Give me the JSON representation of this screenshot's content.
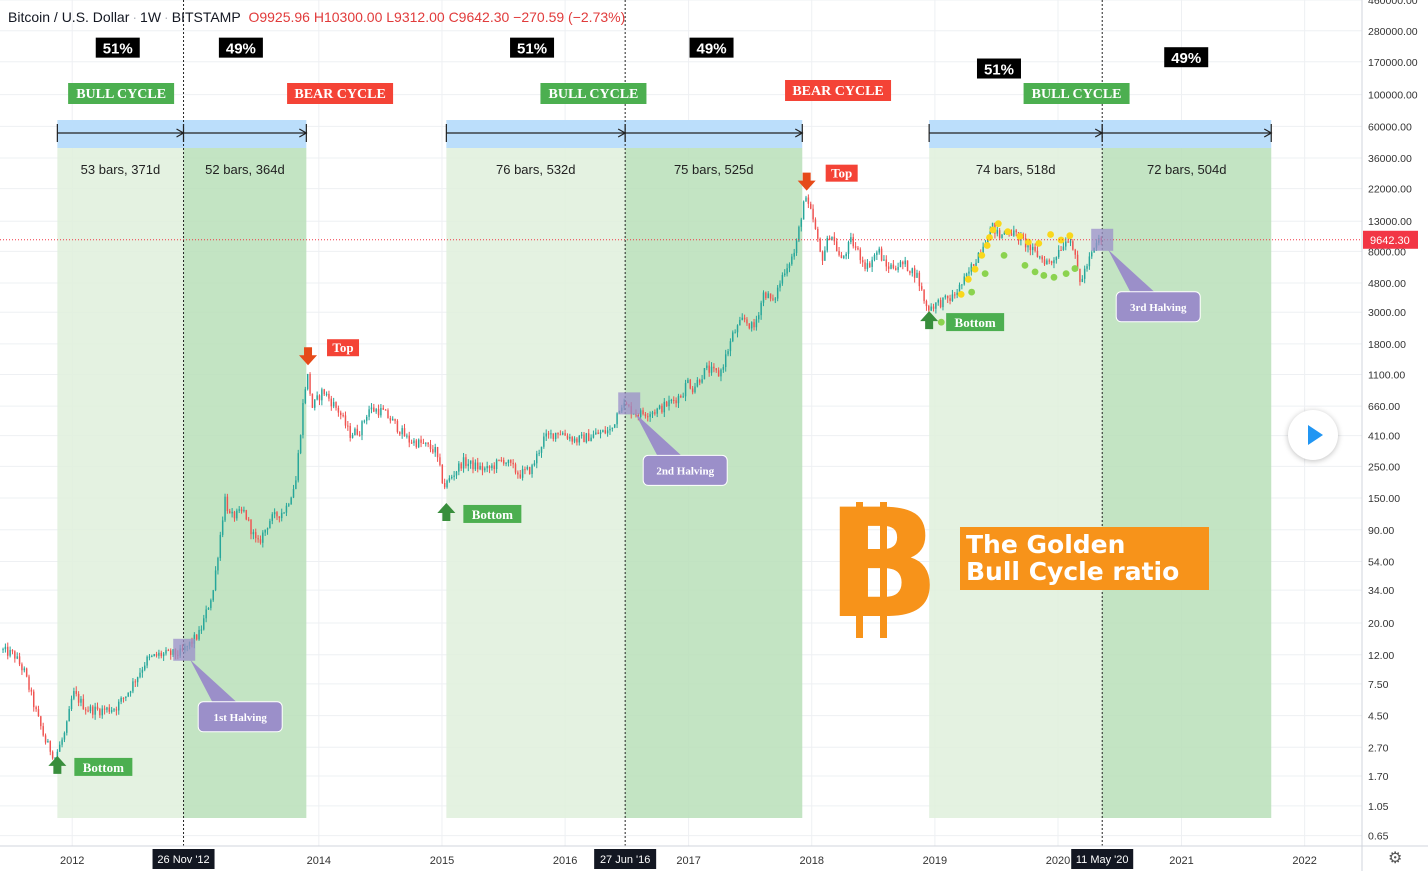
{
  "header": {
    "symbol": "Bitcoin / U.S. Dollar",
    "interval": "1W",
    "exchange": "BITSTAMP",
    "open": "O9925.96",
    "high": "H10300.00",
    "low": "L9312.00",
    "close": "C9642.30",
    "change": "−270.59 (−2.73%)"
  },
  "chart_data": {
    "type": "candlestick",
    "title": "Bitcoin / U.S. Dollar · 1W · BITSTAMP",
    "y_scale": "log",
    "ylim": [
      0.55,
      460000
    ],
    "xlim": [
      "2011-06-01",
      "2022-06-20"
    ],
    "x_ticks": [
      "2012",
      "2014",
      "2015",
      "2016",
      "2017",
      "2018",
      "2019",
      "2020",
      "2021",
      "2022"
    ],
    "y_ticks": [
      "0.65",
      "1.05",
      "1.70",
      "2.70",
      "4.50",
      "7.50",
      "12.00",
      "20.00",
      "34.00",
      "54.00",
      "90.00",
      "150.00",
      "250.00",
      "410.00",
      "660.00",
      "1100.00",
      "1800.00",
      "3000.00",
      "4800.00",
      "8000.00",
      "13000.00",
      "22000.00",
      "36000.00",
      "60000.00",
      "100000.00",
      "170000.00",
      "280000.00",
      "460000.00"
    ],
    "last_price": {
      "value": 9642.3,
      "label": "9642.30",
      "color": "#f23645"
    },
    "date_markers": [
      {
        "date": "2012-11-26",
        "label": "26 Nov '12"
      },
      {
        "date": "2016-06-27",
        "label": "27 Jun '16"
      },
      {
        "date": "2020-05-11",
        "label": "11 May '20"
      }
    ],
    "price_path": [
      [
        "2011-06-10",
        13
      ],
      [
        "2011-07-20",
        12
      ],
      [
        "2011-08-20",
        9
      ],
      [
        "2011-09-20",
        5
      ],
      [
        "2011-10-20",
        3
      ],
      [
        "2011-11-18",
        2.3
      ],
      [
        "2011-12-20",
        3.5
      ],
      [
        "2012-01-10",
        6.5
      ],
      [
        "2012-02-20",
        5
      ],
      [
        "2012-04-01",
        4.9
      ],
      [
        "2012-05-15",
        5.1
      ],
      [
        "2012-06-20",
        6.5
      ],
      [
        "2012-08-15",
        11
      ],
      [
        "2012-09-20",
        12
      ],
      [
        "2012-11-26",
        12.3
      ],
      [
        "2013-01-20",
        17
      ],
      [
        "2013-03-01",
        34
      ],
      [
        "2013-04-05",
        150
      ],
      [
        "2013-04-20",
        110
      ],
      [
        "2013-06-01",
        120
      ],
      [
        "2013-07-10",
        70
      ],
      [
        "2013-08-15",
        105
      ],
      [
        "2013-10-01",
        125
      ],
      [
        "2013-11-01",
        200
      ],
      [
        "2013-11-25",
        800
      ],
      [
        "2013-12-05",
        1100
      ],
      [
        "2013-12-20",
        650
      ],
      [
        "2014-01-20",
        850
      ],
      [
        "2014-03-10",
        600
      ],
      [
        "2014-04-10",
        420
      ],
      [
        "2014-05-10",
        450
      ],
      [
        "2014-06-05",
        630
      ],
      [
        "2014-07-15",
        610
      ],
      [
        "2014-08-20",
        500
      ],
      [
        "2014-10-01",
        380
      ],
      [
        "2014-11-10",
        360
      ],
      [
        "2014-12-20",
        320
      ],
      [
        "2015-01-14",
        180
      ],
      [
        "2015-03-10",
        270
      ],
      [
        "2015-05-20",
        235
      ],
      [
        "2015-07-10",
        280
      ],
      [
        "2015-08-25",
        220
      ],
      [
        "2015-10-01",
        240
      ],
      [
        "2015-11-05",
        390
      ],
      [
        "2015-12-20",
        440
      ],
      [
        "2016-02-10",
        380
      ],
      [
        "2016-04-10",
        420
      ],
      [
        "2016-05-25",
        450
      ],
      [
        "2016-06-20",
        700
      ],
      [
        "2016-08-10",
        580
      ],
      [
        "2016-10-10",
        620
      ],
      [
        "2016-12-20",
        800
      ],
      [
        "2017-01-05",
        1000
      ],
      [
        "2017-01-20",
        880
      ],
      [
        "2017-03-01",
        1200
      ],
      [
        "2017-04-10",
        1100
      ],
      [
        "2017-05-20",
        2100
      ],
      [
        "2017-06-20",
        2700
      ],
      [
        "2017-07-20",
        2300
      ],
      [
        "2017-08-20",
        4200
      ],
      [
        "2017-09-15",
        3500
      ],
      [
        "2017-10-20",
        6000
      ],
      [
        "2017-11-20",
        8000
      ],
      [
        "2017-12-17",
        19000
      ],
      [
        "2018-01-10",
        14000
      ],
      [
        "2018-02-06",
        7000
      ],
      [
        "2018-03-05",
        11000
      ],
      [
        "2018-04-05",
        6800
      ],
      [
        "2018-05-05",
        9500
      ],
      [
        "2018-06-20",
        6200
      ],
      [
        "2018-07-25",
        8200
      ],
      [
        "2018-08-15",
        6200
      ],
      [
        "2018-10-10",
        6500
      ],
      [
        "2018-11-15",
        5500
      ],
      [
        "2018-12-15",
        3200
      ],
      [
        "2019-01-20",
        3500
      ],
      [
        "2019-03-01",
        3800
      ],
      [
        "2019-04-10",
        5200
      ],
      [
        "2019-05-20",
        8000
      ],
      [
        "2019-06-26",
        12000
      ],
      [
        "2019-07-20",
        10000
      ],
      [
        "2019-08-10",
        11500
      ],
      [
        "2019-09-20",
        9800
      ],
      [
        "2019-10-25",
        8000
      ],
      [
        "2019-11-25",
        7000
      ],
      [
        "2019-12-18",
        6600
      ],
      [
        "2020-01-15",
        8600
      ],
      [
        "2020-02-13",
        10300
      ],
      [
        "2020-03-13",
        4900
      ],
      [
        "2020-04-10",
        7000
      ],
      [
        "2020-05-08",
        9642
      ]
    ],
    "cycle_zones": [
      {
        "start": "2011-11-18",
        "end": "2012-11-26",
        "shade": "light"
      },
      {
        "start": "2012-11-26",
        "end": "2013-11-25",
        "shade": "dark"
      },
      {
        "start": "2015-01-14",
        "end": "2016-06-27",
        "shade": "light"
      },
      {
        "start": "2016-06-27",
        "end": "2017-12-04",
        "shade": "dark"
      },
      {
        "start": "2018-12-15",
        "end": "2020-05-11",
        "shade": "light"
      },
      {
        "start": "2020-05-11",
        "end": "2021-09-24",
        "shade": "dark"
      }
    ],
    "ranges": [
      {
        "start": "2011-11-18",
        "end": "2012-11-26",
        "label": "53 bars, 371d"
      },
      {
        "start": "2012-11-26",
        "end": "2013-11-25",
        "label": "52 bars, 364d"
      },
      {
        "start": "2015-01-14",
        "end": "2016-06-27",
        "label": "76 bars, 532d"
      },
      {
        "start": "2016-06-27",
        "end": "2017-12-04",
        "label": "75 bars, 525d"
      },
      {
        "start": "2018-12-15",
        "end": "2020-05-11",
        "label": "74 bars, 518d"
      },
      {
        "start": "2020-05-11",
        "end": "2021-09-24",
        "label": "72 bars, 504d"
      }
    ],
    "percent_labels": [
      {
        "date": "2012-05-15",
        "price": 210000,
        "text": "51%"
      },
      {
        "date": "2013-05-15",
        "price": 210000,
        "text": "49%"
      },
      {
        "date": "2015-09-25",
        "price": 210000,
        "text": "51%"
      },
      {
        "date": "2017-03-10",
        "price": 210000,
        "text": "49%"
      },
      {
        "date": "2019-07-10",
        "price": 150000,
        "text": "51%"
      },
      {
        "date": "2021-01-15",
        "price": 180000,
        "text": "49%"
      }
    ],
    "cycle_labels": [
      {
        "date": "2012-05-25",
        "text": "BULL CYCLE",
        "type": "bull"
      },
      {
        "date": "2014-03-05",
        "text": "BEAR CYCLE",
        "type": "bear"
      },
      {
        "date": "2016-03-25",
        "text": "BULL CYCLE",
        "type": "bull"
      },
      {
        "date": "2018-03-20",
        "text": "BEAR CYCLE",
        "type": "bear"
      },
      {
        "date": "2020-02-25",
        "text": "BULL CYCLE",
        "type": "bull"
      }
    ],
    "bottoms": [
      {
        "date": "2011-11-18",
        "price": 2.0,
        "label": "Bottom"
      },
      {
        "date": "2015-01-14",
        "price": 118,
        "label": "Bottom"
      },
      {
        "date": "2018-12-15",
        "price": 2600,
        "label": "Bottom"
      }
    ],
    "tops": [
      {
        "date": "2013-11-30",
        "price": 1500,
        "label": "Top"
      },
      {
        "date": "2017-12-17",
        "price": 25000,
        "label": "Top"
      }
    ],
    "halvings": [
      {
        "date": "2012-11-28",
        "price": 13,
        "label": "1st Halving"
      },
      {
        "date": "2016-07-09",
        "price": 690,
        "label": "2nd Halving"
      },
      {
        "date": "2020-05-11",
        "price": 9642,
        "label": "3rd Halving"
      }
    ],
    "scatter_yellow": [
      [
        "2019-03-20",
        4000
      ],
      [
        "2019-04-10",
        5100
      ],
      [
        "2019-04-30",
        6000
      ],
      [
        "2019-05-20",
        7500
      ],
      [
        "2019-06-05",
        8800
      ],
      [
        "2019-06-12",
        10000
      ],
      [
        "2019-06-22",
        11300
      ],
      [
        "2019-07-08",
        12500
      ],
      [
        "2019-08-05",
        11000
      ],
      [
        "2019-09-10",
        10200
      ],
      [
        "2019-10-05",
        9300
      ],
      [
        "2019-11-05",
        9100
      ],
      [
        "2019-12-10",
        10500
      ],
      [
        "2020-01-10",
        9600
      ],
      [
        "2020-02-05",
        10300
      ]
    ],
    "scatter_green": [
      [
        "2019-01-20",
        3200
      ],
      [
        "2019-02-15",
        3000
      ],
      [
        "2019-03-10",
        3400
      ],
      [
        "2019-04-20",
        5200
      ],
      [
        "2019-05-30",
        7000
      ],
      [
        "2019-07-25",
        9400
      ],
      [
        "2019-09-25",
        8000
      ],
      [
        "2019-10-25",
        7200
      ],
      [
        "2019-11-20",
        6800
      ],
      [
        "2019-12-20",
        6600
      ],
      [
        "2020-01-25",
        7000
      ],
      [
        "2020-02-20",
        7600
      ]
    ],
    "annotation": {
      "line1": "The Golden",
      "line2": "Bull Cycle ratio"
    },
    "logo_glyph": "B"
  }
}
